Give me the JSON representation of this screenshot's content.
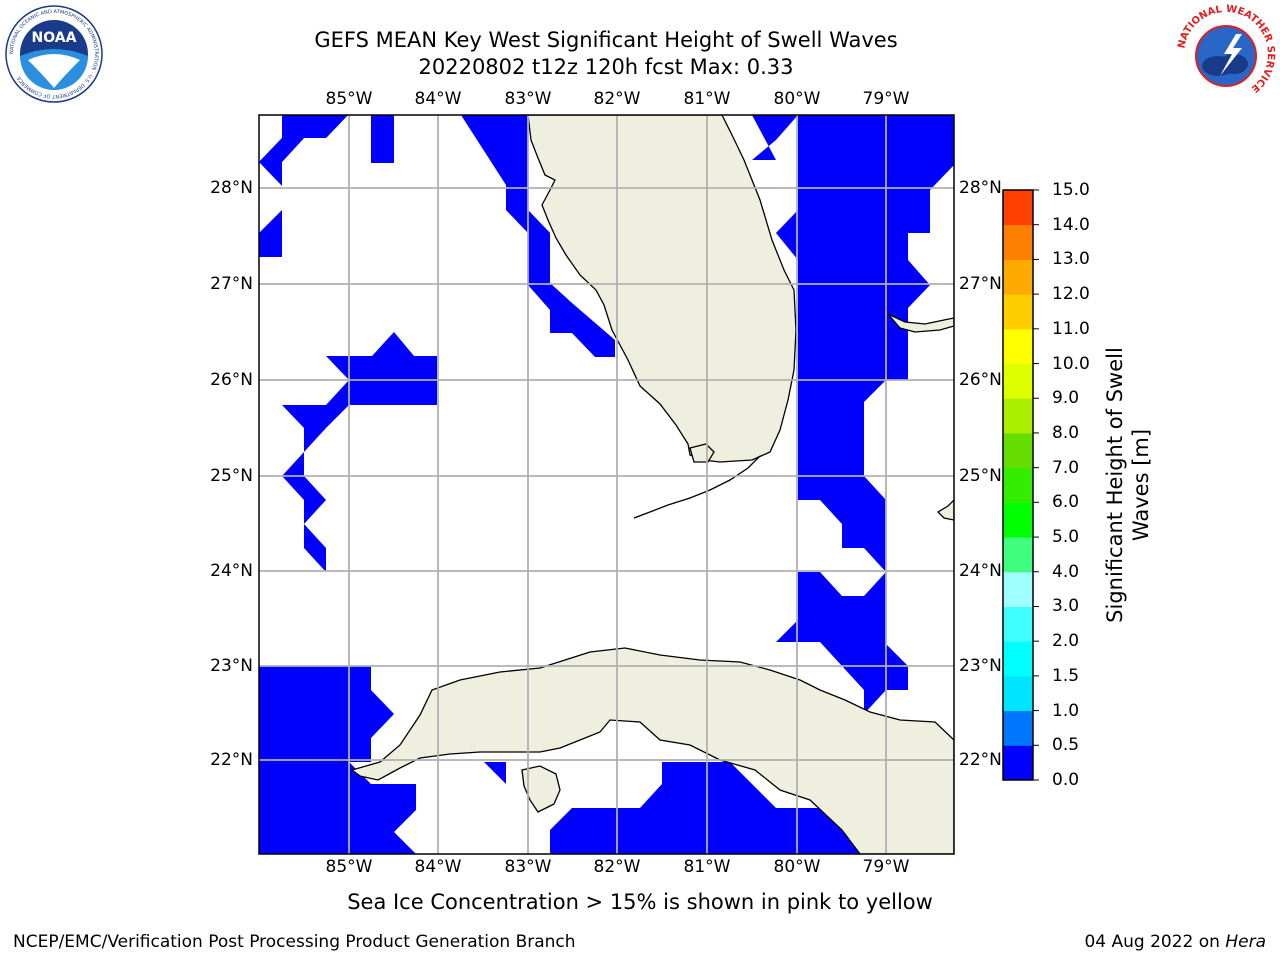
{
  "title_line1": "GEFS MEAN Key West Significant Height of Swell Waves",
  "title_line2": "20220802 t12z 120h fcst   Max: 0.33",
  "lon_ticks": [
    "85°W",
    "84°W",
    "83°W",
    "82°W",
    "81°W",
    "80°W",
    "79°W"
  ],
  "lat_ticks": [
    "28°N",
    "27°N",
    "26°N",
    "25°N",
    "24°N",
    "23°N",
    "22°N"
  ],
  "colorbar": {
    "label": "Significant Height of Swell Waves [m]",
    "ticks": [
      "0.0",
      "0.5",
      "1.0",
      "1.5",
      "2.0",
      "3.0",
      "4.0",
      "5.0",
      "6.0",
      "7.0",
      "8.0",
      "9.0",
      "10.0",
      "11.0",
      "12.0",
      "13.0",
      "14.0",
      "15.0"
    ],
    "colors": [
      "#0000ff",
      "#0077ff",
      "#00e5ff",
      "#00ffff",
      "#40ffff",
      "#a0ffff",
      "#40ff80",
      "#00ff00",
      "#33ee00",
      "#66dd00",
      "#aaee00",
      "#ddff00",
      "#ffff00",
      "#ffcc00",
      "#ffaa00",
      "#ff8000",
      "#ff4000",
      "#ff0000"
    ]
  },
  "colors": {
    "land": "#efefdf",
    "swell_low": "#0000ff",
    "grid": "#b0b0b0"
  },
  "ice_note": "Sea Ice Concentration > 15% is shown in pink to yellow",
  "footer_left": "NCEP/EMC/Verification Post Processing Product Generation Branch",
  "footer_date": "04 Aug 2022 on",
  "footer_machine": "Hera",
  "logo_left": {
    "text": "NOAA",
    "ring_text": "NATIONAL OCEANIC AND ATMOSPHERIC ADMINISTRATION · U.S. DEPARTMENT OF COMMERCE"
  },
  "logo_right": {
    "ring_text": "NATIONAL WEATHER SERVICE"
  }
}
